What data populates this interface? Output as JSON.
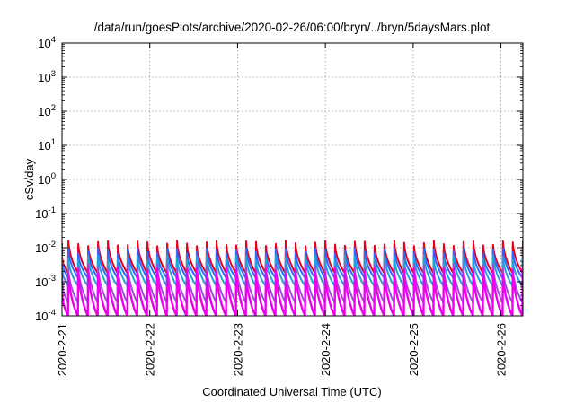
{
  "chart_data": {
    "type": "line",
    "title": "/data/run/goesPlots/archive/2020-02-26/06:00/bryn/../bryn/5daysMars.plot",
    "xlabel": "Coordinated Universal Time (UTC)",
    "ylabel": "cSv/day",
    "yscale": "log",
    "ylim": [
      0.0001,
      10000
    ],
    "yticks": [
      {
        "base": "10",
        "exp": "-4"
      },
      {
        "base": "10",
        "exp": "-3"
      },
      {
        "base": "10",
        "exp": "-2"
      },
      {
        "base": "10",
        "exp": "-1"
      },
      {
        "base": "10",
        "exp": "0"
      },
      {
        "base": "10",
        "exp": "1"
      },
      {
        "base": "10",
        "exp": "2"
      },
      {
        "base": "10",
        "exp": "3"
      },
      {
        "base": "10",
        "exp": "4"
      }
    ],
    "xlim": [
      "2020-02-21T00:00",
      "2020-02-26T06:00"
    ],
    "xticks": [
      "2020-2-21",
      "2020-2-22",
      "2020-2-23",
      "2020-2-24",
      "2020-2-25",
      "2020-2-26"
    ],
    "grid": true,
    "legend": "none",
    "sawtooth_period_hours": 2.7,
    "series": [
      {
        "color": "#e8001c",
        "peak": 0.0135,
        "trough": 0.0018
      },
      {
        "color": "#3366ff",
        "peak": 0.0082,
        "trough": 0.0013
      },
      {
        "color": "#1fa3d8",
        "peak": 0.0052,
        "trough": 0.00075
      },
      {
        "color": "#9c4fd8",
        "peak": 0.0028,
        "trough": 0.00024
      },
      {
        "color": "#ee00ee",
        "peak": 0.0021,
        "trough": 9e-05
      }
    ]
  }
}
